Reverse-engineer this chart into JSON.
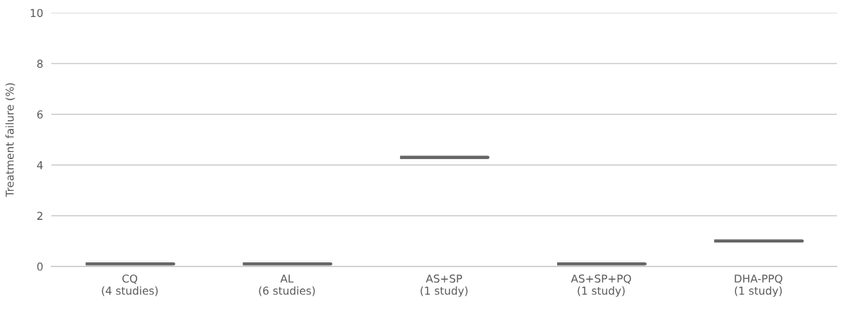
{
  "chart_data": {
    "type": "box",
    "ylabel": "Treatment failure (%)",
    "categories": [
      "CQ\n(4 studies)",
      "AL\n(6 studies)",
      "AS+SP\n(1 study)",
      "AS+SP+PQ\n(1 study)",
      "DHA-PPQ\n(1 study)"
    ],
    "boxes": [
      {
        "low": 0.1,
        "q1": 0.1,
        "median": 0.1,
        "q3": 0.1,
        "high": 0.1
      },
      {
        "low": 0.1,
        "q1": 0.1,
        "median": 0.1,
        "q3": 0.1,
        "high": 0.1
      },
      {
        "low": 4.3,
        "q1": 4.3,
        "median": 4.3,
        "q3": 4.3,
        "high": 4.3
      },
      {
        "low": 0.1,
        "q1": 0.1,
        "median": 0.1,
        "q3": 0.1,
        "high": 0.1
      },
      {
        "low": 1.0,
        "q1": 1.0,
        "median": 1.0,
        "q3": 1.0,
        "high": 1.0
      }
    ],
    "color": "#666666",
    "ylim": [
      0,
      10
    ],
    "yticks": [
      0,
      2,
      4,
      6,
      8,
      10
    ],
    "grid": "y"
  }
}
